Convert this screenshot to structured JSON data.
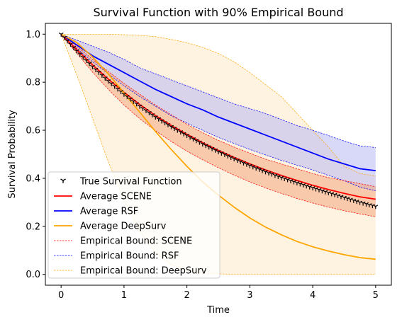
{
  "chart_data": {
    "type": "line",
    "title": "Survival Function with 90% Empirical Bound",
    "xlabel": "Time",
    "ylabel": "Survival Probability",
    "xlim": [
      -0.25,
      5.25
    ],
    "ylim": [
      -0.045,
      1.045
    ],
    "x_ticks": [
      0,
      1,
      2,
      3,
      4,
      5
    ],
    "x_tick_labels": [
      "0",
      "1",
      "2",
      "3",
      "4",
      "5"
    ],
    "y_ticks": [
      0.0,
      0.2,
      0.4,
      0.6,
      0.8,
      1.0
    ],
    "y_tick_labels": [
      "0.0",
      "0.2",
      "0.4",
      "0.6",
      "0.8",
      "1.0"
    ],
    "grid": false,
    "legend_position": "lower-left",
    "x": [
      0,
      0.25,
      0.5,
      0.75,
      1,
      1.25,
      1.5,
      1.75,
      2,
      2.25,
      2.5,
      2.75,
      3,
      3.25,
      3.5,
      3.75,
      4,
      4.25,
      4.5,
      4.75,
      5
    ],
    "series": [
      {
        "name": "True Survival Function",
        "kind": "markers",
        "marker": "tri_down",
        "color": "#000000",
        "values": [
          1.0,
          0.93,
          0.865,
          0.805,
          0.75,
          0.7,
          0.655,
          0.615,
          0.578,
          0.543,
          0.511,
          0.481,
          0.453,
          0.427,
          0.403,
          0.381,
          0.36,
          0.34,
          0.32,
          0.3,
          0.283
        ]
      },
      {
        "name": "Average SCENE",
        "kind": "line",
        "color": "#ff0000",
        "values": [
          1.0,
          0.935,
          0.872,
          0.813,
          0.758,
          0.707,
          0.661,
          0.62,
          0.583,
          0.548,
          0.516,
          0.487,
          0.46,
          0.435,
          0.412,
          0.391,
          0.371,
          0.353,
          0.337,
          0.323,
          0.313
        ]
      },
      {
        "name": "Average RSF",
        "kind": "line",
        "color": "#0000ff",
        "values": [
          1.0,
          0.955,
          0.91,
          0.875,
          0.84,
          0.805,
          0.77,
          0.74,
          0.71,
          0.685,
          0.655,
          0.63,
          0.605,
          0.58,
          0.555,
          0.53,
          0.505,
          0.48,
          0.46,
          0.44,
          0.432
        ]
      },
      {
        "name": "Average DeepSurv",
        "kind": "line",
        "color": "#ffa500",
        "values": [
          1.0,
          0.965,
          0.905,
          0.835,
          0.755,
          0.675,
          0.595,
          0.52,
          0.45,
          0.385,
          0.33,
          0.28,
          0.235,
          0.197,
          0.165,
          0.137,
          0.115,
          0.097,
          0.082,
          0.07,
          0.063
        ]
      }
    ],
    "bounds": [
      {
        "name": "Empirical Bound: SCENE",
        "color": "#ff0000",
        "fill": "#f4a582",
        "upper": [
          1.0,
          0.95,
          0.895,
          0.845,
          0.795,
          0.75,
          0.705,
          0.665,
          0.625,
          0.59,
          0.558,
          0.53,
          0.505,
          0.48,
          0.46,
          0.44,
          0.42,
          0.403,
          0.39,
          0.378,
          0.365
        ],
        "lower": [
          1.0,
          0.92,
          0.842,
          0.77,
          0.705,
          0.648,
          0.598,
          0.553,
          0.513,
          0.477,
          0.444,
          0.413,
          0.385,
          0.36,
          0.337,
          0.316,
          0.297,
          0.28,
          0.265,
          0.252,
          0.24
        ]
      },
      {
        "name": "Empirical Bound: RSF",
        "color": "#0000ff",
        "fill": "#b8b8f2",
        "upper": [
          1.0,
          0.975,
          0.95,
          0.925,
          0.895,
          0.86,
          0.835,
          0.81,
          0.785,
          0.76,
          0.735,
          0.71,
          0.69,
          0.67,
          0.645,
          0.62,
          0.6,
          0.578,
          0.555,
          0.535,
          0.528
        ],
        "lower": [
          1.0,
          0.94,
          0.885,
          0.835,
          0.785,
          0.74,
          0.7,
          0.66,
          0.63,
          0.6,
          0.57,
          0.545,
          0.52,
          0.497,
          0.475,
          0.455,
          0.435,
          0.412,
          0.39,
          0.363,
          0.348
        ]
      },
      {
        "name": "Empirical Bound: DeepSurv",
        "color": "#ffa500",
        "fill": "#fde9c6",
        "upper": [
          1.0,
          1.0,
          1.0,
          1.0,
          0.998,
          0.995,
          0.99,
          0.978,
          0.965,
          0.945,
          0.92,
          0.885,
          0.84,
          0.79,
          0.74,
          0.67,
          0.6,
          0.53,
          0.45,
          0.42,
          0.41
        ],
        "lower": [
          1.0,
          0.83,
          0.65,
          0.47,
          0.31,
          0.18,
          0.09,
          0.04,
          0.015,
          0.005,
          0.002,
          0.0,
          0.0,
          0.0,
          0.0,
          0.0,
          0.0,
          0.0,
          0.0,
          0.0,
          0.0
        ]
      }
    ],
    "legend": [
      {
        "label": "True Survival Function",
        "kind": "marker",
        "color": "#000000"
      },
      {
        "label": "Average SCENE",
        "kind": "line",
        "color": "#ff0000"
      },
      {
        "label": "Average RSF",
        "kind": "line",
        "color": "#0000ff"
      },
      {
        "label": "Average DeepSurv",
        "kind": "line",
        "color": "#ffa500"
      },
      {
        "label": "Empirical Bound: SCENE",
        "kind": "dashed",
        "color": "#ff0000"
      },
      {
        "label": "Empirical Bound: RSF",
        "kind": "dashed",
        "color": "#0000ff"
      },
      {
        "label": "Empirical Bound: DeepSurv",
        "kind": "dashed",
        "color": "#ffa500"
      }
    ]
  }
}
